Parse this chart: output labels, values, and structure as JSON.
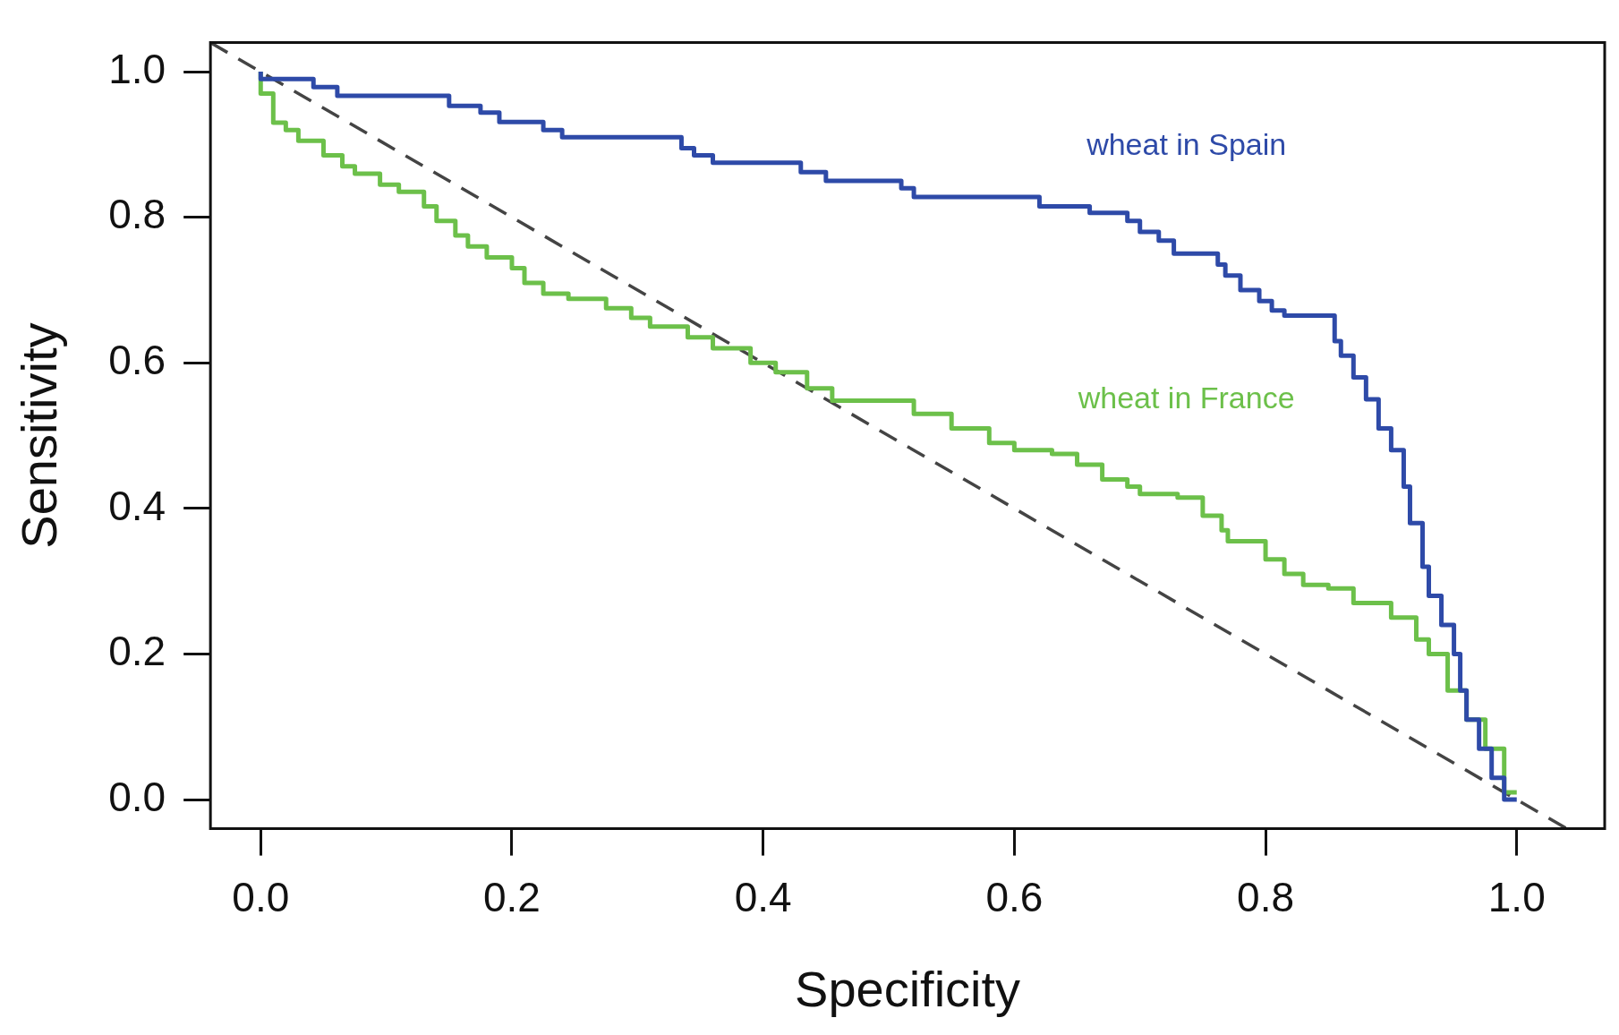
{
  "chart_data": {
    "type": "step",
    "xlabel": "Specificity",
    "ylabel": "Sensitivity",
    "xlim": [
      -0.04,
      1.07
    ],
    "ylim": [
      -0.04,
      1.04
    ],
    "xticks": [
      {
        "value": 0,
        "label": "0.0"
      },
      0.2,
      0.4,
      0.6,
      0.8,
      {
        "value": 1,
        "label": "1.0"
      }
    ],
    "yticks": [
      {
        "value": 0,
        "label": "0.0"
      },
      0.2,
      0.4,
      0.6,
      0.8,
      {
        "value": 1,
        "label": "1.0"
      }
    ],
    "legend": false,
    "series": [
      {
        "name": "wheat in Spain",
        "color": "#2e4aa8",
        "x": [
          0,
          0.042,
          0.061,
          0.15,
          0.175,
          0.19,
          0.225,
          0.24,
          0.335,
          0.345,
          0.36,
          0.43,
          0.45,
          0.51,
          0.52,
          0.62,
          0.66,
          0.69,
          0.7,
          0.715,
          0.727,
          0.762,
          0.768,
          0.78,
          0.795,
          0.805,
          0.815,
          0.855,
          0.86,
          0.87,
          0.88,
          0.89,
          0.9,
          0.91,
          0.915,
          0.925,
          0.93,
          0.94,
          0.95,
          0.955,
          0.96,
          0.97,
          0.98,
          0.99,
          1.0
        ],
        "values": [
          1.0,
          0.99,
          0.979,
          0.967,
          0.953,
          0.944,
          0.931,
          0.92,
          0.91,
          0.895,
          0.885,
          0.875,
          0.862,
          0.85,
          0.84,
          0.828,
          0.815,
          0.806,
          0.795,
          0.78,
          0.768,
          0.75,
          0.735,
          0.72,
          0.7,
          0.685,
          0.672,
          0.665,
          0.63,
          0.61,
          0.58,
          0.55,
          0.51,
          0.48,
          0.43,
          0.38,
          0.32,
          0.28,
          0.24,
          0.2,
          0.15,
          0.11,
          0.07,
          0.03,
          0.0
        ]
      },
      {
        "name": "wheat in France",
        "color": "#6cc04a",
        "x": [
          0,
          0.01,
          0.02,
          0.03,
          0.05,
          0.065,
          0.075,
          0.095,
          0.11,
          0.13,
          0.14,
          0.155,
          0.165,
          0.18,
          0.2,
          0.21,
          0.225,
          0.245,
          0.275,
          0.295,
          0.31,
          0.34,
          0.36,
          0.39,
          0.41,
          0.435,
          0.455,
          0.52,
          0.55,
          0.58,
          0.6,
          0.63,
          0.65,
          0.67,
          0.69,
          0.7,
          0.73,
          0.75,
          0.765,
          0.77,
          0.8,
          0.815,
          0.83,
          0.85,
          0.87,
          0.9,
          0.92,
          0.93,
          0.945,
          0.96,
          0.975,
          0.99,
          1.0
        ],
        "values": [
          1.0,
          0.97,
          0.93,
          0.92,
          0.905,
          0.885,
          0.87,
          0.86,
          0.845,
          0.835,
          0.815,
          0.795,
          0.775,
          0.76,
          0.745,
          0.73,
          0.71,
          0.695,
          0.688,
          0.675,
          0.662,
          0.65,
          0.635,
          0.62,
          0.6,
          0.587,
          0.565,
          0.548,
          0.53,
          0.51,
          0.49,
          0.48,
          0.475,
          0.46,
          0.44,
          0.43,
          0.42,
          0.415,
          0.39,
          0.37,
          0.355,
          0.33,
          0.31,
          0.295,
          0.29,
          0.27,
          0.25,
          0.22,
          0.2,
          0.15,
          0.11,
          0.07,
          0.01
        ]
      },
      {
        "type": "line",
        "color": "#444444",
        "line_style": "dashed",
        "x": [
          -0.04,
          1.04
        ],
        "values": [
          1.04,
          -0.04
        ]
      }
    ]
  }
}
